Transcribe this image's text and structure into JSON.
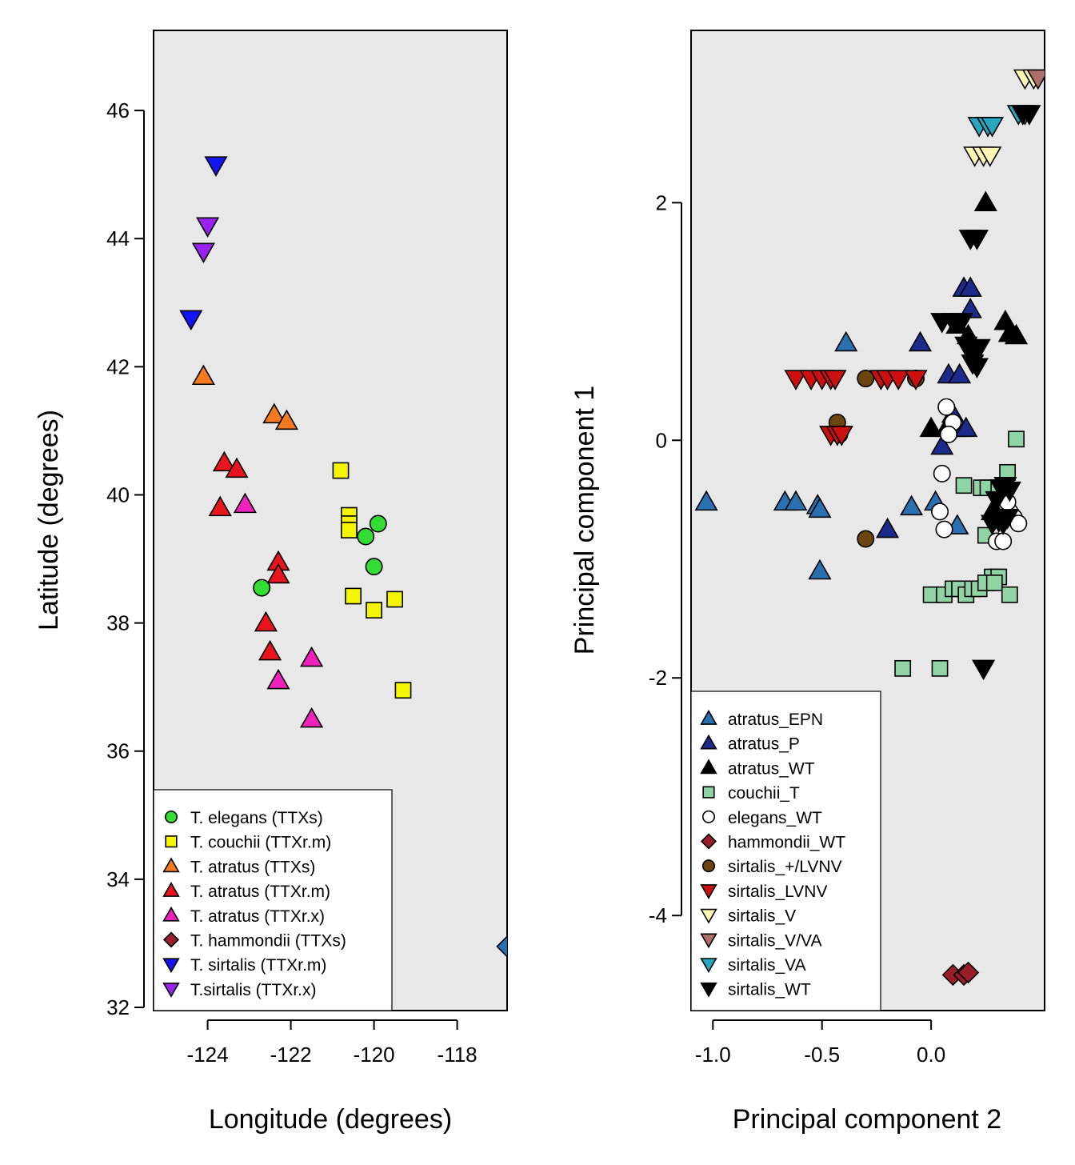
{
  "chart_data": [
    {
      "type": "scatter",
      "xlabel": "Longitude (degrees)",
      "ylabel": "Latitude (degrees)",
      "xlim": [
        -125.3,
        -116.8
      ],
      "ylim": [
        31.95,
        47.25
      ],
      "xticks": [
        -124,
        -122,
        -120,
        -118
      ],
      "xtick_labels": [
        "-124",
        "-122",
        "-120",
        "-118"
      ],
      "yticks": [
        32,
        34,
        36,
        38,
        40,
        42,
        44,
        46
      ],
      "ytick_labels": [
        "32",
        "34",
        "36",
        "38",
        "40",
        "42",
        "44",
        "46"
      ],
      "background": "#e8e8e8",
      "grid": false,
      "legend_position": "bottom-left",
      "series": [
        {
          "name": "T. elegans (TTXs)",
          "marker": "circle",
          "color": "#33dd33",
          "points": [
            [
              -120.2,
              39.35
            ],
            [
              -119.9,
              39.55
            ],
            [
              -120.0,
              38.88
            ],
            [
              -122.7,
              38.55
            ]
          ]
        },
        {
          "name": "T. couchii (TTXr.m)",
          "marker": "square",
          "color": "#f5f500",
          "points": [
            [
              -120.8,
              40.38
            ],
            [
              -120.6,
              39.68
            ],
            [
              -120.6,
              39.55
            ],
            [
              -120.6,
              39.45
            ],
            [
              -120.5,
              38.42
            ],
            [
              -120.0,
              38.2
            ],
            [
              -119.5,
              38.37
            ],
            [
              -119.3,
              36.95
            ]
          ]
        },
        {
          "name": "T. atratus (TTXs)",
          "marker": "triangle-up",
          "color": "#f47a20",
          "points": [
            [
              -124.1,
              41.85
            ],
            [
              -122.4,
              41.25
            ],
            [
              -122.1,
              41.15
            ]
          ]
        },
        {
          "name": "T. atratus (TTXr.m)",
          "marker": "triangle-up",
          "color": "#e8141e",
          "points": [
            [
              -123.6,
              40.5
            ],
            [
              -123.3,
              40.4
            ],
            [
              -123.7,
              39.8
            ],
            [
              -122.3,
              38.95
            ],
            [
              -122.3,
              38.75
            ],
            [
              -122.6,
              38.0
            ],
            [
              -122.5,
              37.55
            ]
          ]
        },
        {
          "name": "T. atratus (TTXr.x)",
          "marker": "triangle-up",
          "color": "#ee22bb",
          "points": [
            [
              -123.1,
              39.85
            ],
            [
              -121.5,
              37.45
            ],
            [
              -122.3,
              37.1
            ],
            [
              -121.5,
              36.5
            ]
          ]
        },
        {
          "name": "T. hammondii (TTXs)",
          "marker": "diamond",
          "color": "#9a1e2a",
          "points": []
        },
        {
          "name": "T. sirtalis (TTXr.m)",
          "marker": "triangle-down",
          "color": "#1414f0",
          "points": [
            [
              -123.8,
              45.15
            ],
            [
              -124.4,
              42.75
            ]
          ]
        },
        {
          "name": "T.sirtalis (TTXr.x)",
          "marker": "triangle-down",
          "color": "#9922ee",
          "points": [
            [
              -124.0,
              44.2
            ],
            [
              -124.1,
              43.8
            ]
          ]
        }
      ]
    },
    {
      "type": "scatter",
      "xlabel": "Principal component 2",
      "ylabel": "Principal component 1",
      "xlim": [
        -1.1,
        0.52
      ],
      "ylim": [
        -4.8,
        3.45
      ],
      "xticks": [
        -1.0,
        -0.5,
        0.0
      ],
      "xtick_labels": [
        "-1.0",
        "-0.5",
        "0.0"
      ],
      "yticks": [
        -4,
        -2,
        0,
        2
      ],
      "ytick_labels": [
        "-4",
        "-2",
        "0",
        "2"
      ],
      "background": "#e8e8e8",
      "grid": false,
      "legend_position": "bottom-left",
      "series": [
        {
          "name": "atratus_EPN",
          "marker": "triangle-up",
          "color": "#2a6fb0",
          "points": [
            [
              -1.03,
              -0.52
            ],
            [
              -0.67,
              -0.52
            ],
            [
              -0.62,
              -0.52
            ],
            [
              -0.52,
              -0.55
            ],
            [
              -0.51,
              -0.58
            ],
            [
              -0.39,
              0.82
            ],
            [
              -0.09,
              -0.56
            ],
            [
              -0.51,
              -1.1
            ],
            [
              0.02,
              -0.52
            ],
            [
              0.12,
              -0.72
            ]
          ]
        },
        {
          "name": "atratus_P",
          "marker": "triangle-up",
          "color": "#1c2a8c",
          "points": [
            [
              -0.2,
              -0.75
            ],
            [
              -0.05,
              0.82
            ],
            [
              0.08,
              0.55
            ],
            [
              0.13,
              0.55
            ],
            [
              0.15,
              1.28
            ],
            [
              0.18,
              1.28
            ],
            [
              0.18,
              1.1
            ],
            [
              0.05,
              -0.05
            ],
            [
              0.12,
              0.1
            ],
            [
              0.16,
              0.1
            ],
            [
              0.1,
              0.22
            ]
          ]
        },
        {
          "name": "atratus_WT",
          "marker": "triangle-up",
          "color": "#000000",
          "points": [
            [
              0.25,
              2.0
            ],
            [
              0.0,
              0.1
            ],
            [
              0.07,
              0.1
            ],
            [
              0.12,
              0.97
            ],
            [
              0.17,
              0.88
            ],
            [
              0.34,
              1.0
            ],
            [
              0.36,
              0.9
            ],
            [
              0.39,
              0.88
            ],
            [
              0.28,
              -0.6
            ],
            [
              0.31,
              -0.65
            ]
          ]
        },
        {
          "name": "couchii_T",
          "marker": "square",
          "color": "#90d4a6",
          "points": [
            [
              0.39,
              0.01
            ],
            [
              0.35,
              -0.27
            ],
            [
              0.15,
              -0.38
            ],
            [
              0.23,
              -0.4
            ],
            [
              0.26,
              -0.4
            ],
            [
              0.31,
              -0.42
            ],
            [
              0.25,
              -0.8
            ],
            [
              0.28,
              -1.15
            ],
            [
              0.31,
              -1.15
            ],
            [
              0.0,
              -1.3
            ],
            [
              0.06,
              -1.3
            ],
            [
              0.1,
              -1.25
            ],
            [
              0.13,
              -1.25
            ],
            [
              0.16,
              -1.3
            ],
            [
              0.19,
              -1.25
            ],
            [
              0.22,
              -1.25
            ],
            [
              0.25,
              -1.2
            ],
            [
              0.29,
              -1.2
            ],
            [
              0.36,
              -1.3
            ],
            [
              -0.13,
              -1.92
            ],
            [
              0.04,
              -1.92
            ]
          ]
        },
        {
          "name": "elegans_WT",
          "marker": "circle",
          "color": "#ffffff",
          "points": [
            [
              0.07,
              0.28
            ],
            [
              0.1,
              0.15
            ],
            [
              0.08,
              0.05
            ],
            [
              0.05,
              -0.28
            ],
            [
              0.04,
              -0.6
            ],
            [
              0.06,
              -0.75
            ],
            [
              0.3,
              -0.85
            ],
            [
              0.33,
              -0.85
            ],
            [
              0.36,
              -0.6
            ],
            [
              0.38,
              -0.65
            ],
            [
              0.4,
              -0.7
            ],
            [
              0.35,
              -0.52
            ]
          ]
        },
        {
          "name": "hammondii_WT",
          "marker": "diamond",
          "color": "#9a1e2a",
          "points": [
            [
              0.1,
              -4.5
            ],
            [
              0.15,
              -4.5
            ],
            [
              0.17,
              -4.48
            ]
          ]
        },
        {
          "name": "sirtalis_+/LVNV",
          "marker": "circle",
          "color": "#6b4410",
          "points": [
            [
              -0.3,
              0.52
            ],
            [
              -0.43,
              0.15
            ],
            [
              -0.42,
              0.05
            ],
            [
              -0.3,
              -0.83
            ],
            [
              -0.07,
              0.52
            ]
          ]
        },
        {
          "name": "sirtalis_LVNV",
          "marker": "triangle-down",
          "color": "#cc1010",
          "points": [
            [
              -0.62,
              0.52
            ],
            [
              -0.55,
              0.52
            ],
            [
              -0.5,
              0.52
            ],
            [
              -0.46,
              0.52
            ],
            [
              -0.44,
              0.52
            ],
            [
              -0.23,
              0.52
            ],
            [
              -0.2,
              0.52
            ],
            [
              -0.15,
              0.52
            ],
            [
              -0.07,
              0.52
            ],
            [
              -0.46,
              0.05
            ],
            [
              -0.43,
              0.05
            ],
            [
              -0.41,
              0.05
            ]
          ]
        },
        {
          "name": "sirtalis_V",
          "marker": "triangle-down",
          "color": "#fff7b3",
          "points": [
            [
              0.43,
              3.05
            ],
            [
              0.47,
              3.05
            ],
            [
              0.2,
              2.4
            ],
            [
              0.24,
              2.4
            ],
            [
              0.27,
              2.4
            ]
          ]
        },
        {
          "name": "sirtalis_V/VA",
          "marker": "triangle-down",
          "color": "#b06e68",
          "points": [
            [
              0.49,
              3.05
            ]
          ]
        },
        {
          "name": "sirtalis_VA",
          "marker": "triangle-down",
          "color": "#28a8c0",
          "points": [
            [
              0.22,
              2.65
            ],
            [
              0.26,
              2.65
            ],
            [
              0.28,
              2.65
            ],
            [
              0.4,
              2.75
            ],
            [
              0.43,
              2.75
            ]
          ]
        },
        {
          "name": "sirtalis_WT",
          "marker": "triangle-down",
          "color": "#000000",
          "points": [
            [
              0.45,
              2.75
            ],
            [
              0.42,
              2.75
            ],
            [
              0.18,
              1.7
            ],
            [
              0.21,
              1.7
            ],
            [
              0.05,
              1.0
            ],
            [
              0.1,
              1.0
            ],
            [
              0.14,
              1.0
            ],
            [
              0.16,
              0.8
            ],
            [
              0.18,
              0.75
            ],
            [
              0.2,
              0.75
            ],
            [
              0.22,
              0.78
            ],
            [
              0.19,
              0.65
            ],
            [
              0.21,
              0.62
            ],
            [
              0.24,
              -1.92
            ],
            [
              0.32,
              -0.4
            ],
            [
              0.34,
              -0.38
            ],
            [
              0.36,
              -0.42
            ],
            [
              0.3,
              -0.5
            ],
            [
              0.28,
              -0.7
            ],
            [
              0.31,
              -0.68
            ],
            [
              0.33,
              -0.7
            ],
            [
              0.35,
              -0.65
            ]
          ]
        }
      ]
    }
  ]
}
